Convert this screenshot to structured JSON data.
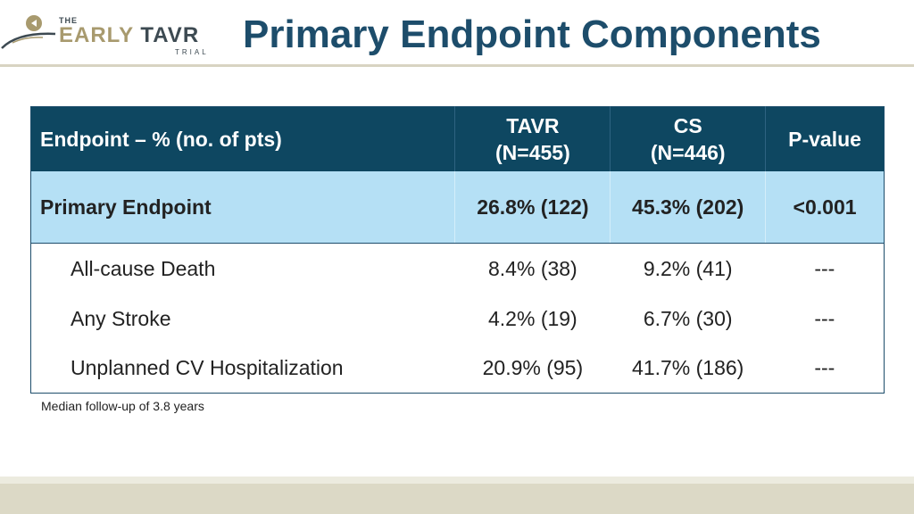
{
  "logo": {
    "the": "THE",
    "early": "EARLY",
    "tavr": "TAVR",
    "trial": "TRIAL"
  },
  "title": "Primary Endpoint Components",
  "table": {
    "header": {
      "endpoint": "Endpoint – % (no. of pts)",
      "tavr_line1": "TAVR",
      "tavr_line2": "(N=455)",
      "cs_line1": "CS",
      "cs_line2": "(N=446)",
      "pvalue": "P-value"
    },
    "primary": {
      "label": "Primary Endpoint",
      "tavr": "26.8% (122)",
      "cs": "45.3% (202)",
      "p": "<0.001"
    },
    "rows": [
      {
        "label": "All-cause Death",
        "tavr": "8.4% (38)",
        "cs": "9.2% (41)",
        "p": "---"
      },
      {
        "label": "Any Stroke",
        "tavr": "4.2% (19)",
        "cs": "6.7% (30)",
        "p": "---"
      },
      {
        "label": "Unplanned CV Hospitalization",
        "tavr": "20.9% (95)",
        "cs": "41.7% (186)",
        "p": "---"
      }
    ]
  },
  "footnote": "Median follow-up of 3.8 years",
  "colors": {
    "title": "#1d4d6b",
    "header_bg": "#0e4761",
    "primary_bg": "#b5e0f5",
    "logo_gold": "#a89a6e"
  }
}
